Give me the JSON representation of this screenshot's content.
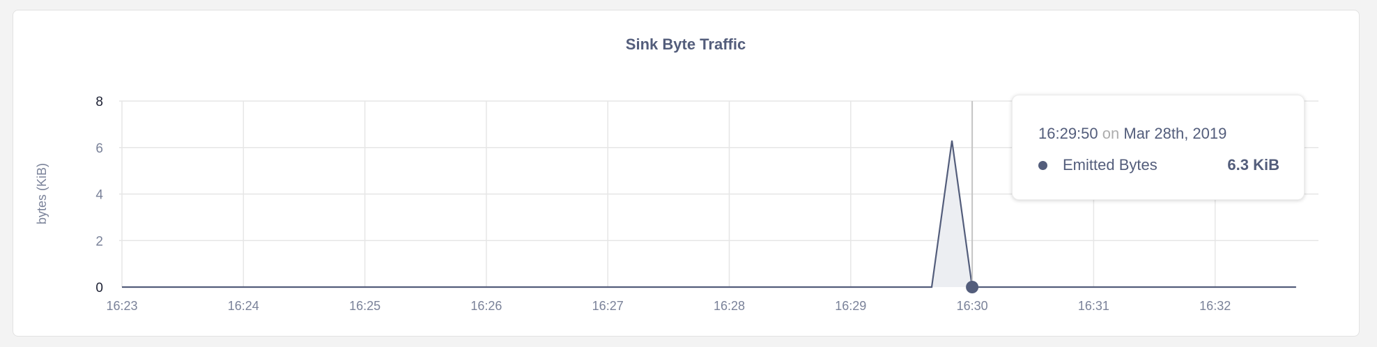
{
  "chart_data": {
    "type": "area",
    "title": "Sink Byte Traffic",
    "ylabel": "bytes (KiB)",
    "xlabel": "",
    "ylim": [
      0,
      8
    ],
    "yticks": [
      "0",
      "2",
      "4",
      "6",
      "8"
    ],
    "xticks": [
      "16:23",
      "16:24",
      "16:25",
      "16:26",
      "16:27",
      "16:28",
      "16:29",
      "16:30",
      "16:31",
      "16:32"
    ],
    "xlim": [
      "16:23:00",
      "16:32:40"
    ],
    "grid": true,
    "series": [
      {
        "name": "Emitted Bytes",
        "color": "#535d7b",
        "fill": "#eceef2",
        "x": [
          "16:23:00",
          "16:29:40",
          "16:29:50",
          "16:30:00",
          "16:32:40"
        ],
        "y": [
          0,
          0,
          6.3,
          0,
          0
        ]
      }
    ],
    "hover_marker_x": "16:30:00"
  },
  "tooltip": {
    "time": "16:29:50",
    "on": "on",
    "date": "Mar 28th, 2019",
    "series_name": "Emitted Bytes",
    "value": "6.3 KiB"
  }
}
